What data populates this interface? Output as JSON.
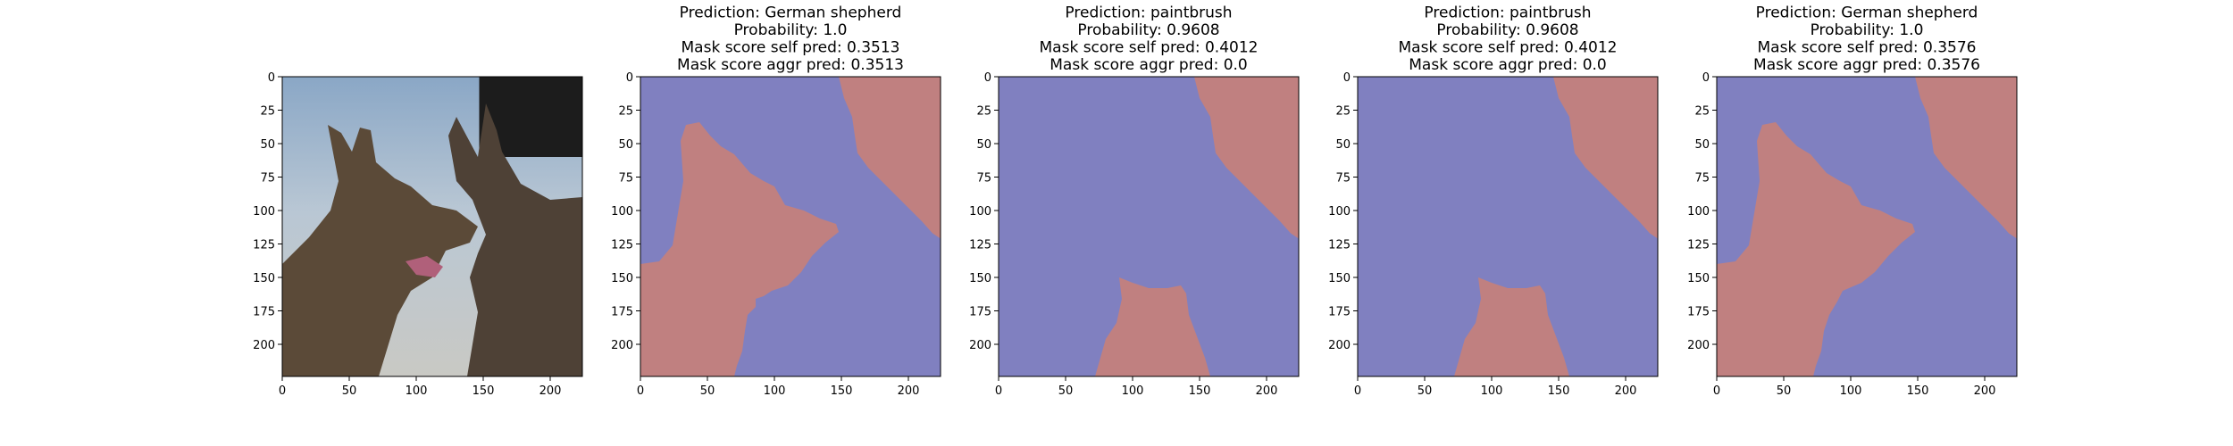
{
  "chart_data": [
    {
      "type": "image",
      "content": "photograph of two German shepherd dogs",
      "title_lines": [],
      "xlim": [
        0,
        224
      ],
      "ylim": [
        224,
        0
      ],
      "xticks": [
        0,
        50,
        100,
        150,
        200
      ],
      "yticks": [
        0,
        25,
        50,
        75,
        100,
        125,
        150,
        175,
        200
      ]
    },
    {
      "type": "mask",
      "title_lines": [
        "Prediction: German shepherd",
        "Probability: 1.0",
        "Mask score self pred: 0.3513",
        "Mask score aggr pred: 0.3513"
      ],
      "xlim": [
        0,
        224
      ],
      "ylim": [
        224,
        0
      ],
      "xticks": [
        0,
        50,
        100,
        150,
        200
      ],
      "yticks": [
        0,
        25,
        50,
        75,
        100,
        125,
        150,
        175,
        200
      ],
      "background_color": "#8080c0",
      "mask_color": "#c08080",
      "regions": [
        [
          [
            148,
            0
          ],
          [
            224,
            0
          ],
          [
            224,
            121
          ],
          [
            218,
            117
          ],
          [
            210,
            108
          ],
          [
            200,
            98
          ],
          [
            190,
            88
          ],
          [
            180,
            78
          ],
          [
            170,
            68
          ],
          [
            162,
            57
          ],
          [
            160,
            44
          ],
          [
            158,
            30
          ],
          [
            152,
            16
          ]
        ],
        [
          [
            0,
            140
          ],
          [
            14,
            138
          ],
          [
            24,
            126
          ],
          [
            28,
            102
          ],
          [
            32,
            78
          ],
          [
            30,
            48
          ],
          [
            34,
            36
          ],
          [
            44,
            34
          ],
          [
            52,
            44
          ],
          [
            60,
            52
          ],
          [
            70,
            58
          ],
          [
            82,
            72
          ],
          [
            92,
            78
          ],
          [
            100,
            82
          ],
          [
            108,
            96
          ],
          [
            122,
            100
          ],
          [
            134,
            106
          ],
          [
            146,
            110
          ],
          [
            148,
            116
          ],
          [
            138,
            124
          ],
          [
            128,
            134
          ],
          [
            120,
            146
          ],
          [
            110,
            156
          ],
          [
            98,
            160
          ],
          [
            92,
            164
          ],
          [
            86,
            166
          ],
          [
            86,
            172
          ],
          [
            80,
            178
          ],
          [
            78,
            190
          ],
          [
            76,
            205
          ],
          [
            72,
            216
          ],
          [
            70,
            224
          ],
          [
            0,
            224
          ]
        ]
      ]
    },
    {
      "type": "mask",
      "title_lines": [
        "Prediction: paintbrush",
        "Probability: 0.9608",
        "Mask score self pred: 0.4012",
        "Mask score aggr pred: 0.0"
      ],
      "xlim": [
        0,
        224
      ],
      "ylim": [
        224,
        0
      ],
      "xticks": [
        0,
        50,
        100,
        150,
        200
      ],
      "yticks": [
        0,
        25,
        50,
        75,
        100,
        125,
        150,
        175,
        200
      ],
      "background_color": "#8080c0",
      "mask_color": "#c08080",
      "regions": [
        [
          [
            146,
            0
          ],
          [
            224,
            0
          ],
          [
            224,
            121
          ],
          [
            218,
            117
          ],
          [
            210,
            108
          ],
          [
            200,
            98
          ],
          [
            190,
            88
          ],
          [
            180,
            78
          ],
          [
            170,
            68
          ],
          [
            162,
            57
          ],
          [
            160,
            44
          ],
          [
            158,
            30
          ],
          [
            150,
            16
          ]
        ],
        [
          [
            72,
            224
          ],
          [
            76,
            210
          ],
          [
            80,
            196
          ],
          [
            88,
            184
          ],
          [
            92,
            166
          ],
          [
            90,
            150
          ],
          [
            100,
            154
          ],
          [
            112,
            158
          ],
          [
            126,
            158
          ],
          [
            136,
            156
          ],
          [
            140,
            162
          ],
          [
            142,
            178
          ],
          [
            148,
            194
          ],
          [
            154,
            210
          ],
          [
            158,
            224
          ]
        ]
      ]
    },
    {
      "type": "mask",
      "title_lines": [
        "Prediction: paintbrush",
        "Probability: 0.9608",
        "Mask score self pred: 0.4012",
        "Mask score aggr pred: 0.0"
      ],
      "xlim": [
        0,
        224
      ],
      "ylim": [
        224,
        0
      ],
      "xticks": [
        0,
        50,
        100,
        150,
        200
      ],
      "yticks": [
        0,
        25,
        50,
        75,
        100,
        125,
        150,
        175,
        200
      ],
      "background_color": "#8080c0",
      "mask_color": "#c08080",
      "regions": [
        [
          [
            146,
            0
          ],
          [
            224,
            0
          ],
          [
            224,
            121
          ],
          [
            218,
            117
          ],
          [
            210,
            108
          ],
          [
            200,
            98
          ],
          [
            190,
            88
          ],
          [
            180,
            78
          ],
          [
            170,
            68
          ],
          [
            162,
            57
          ],
          [
            160,
            44
          ],
          [
            158,
            30
          ],
          [
            150,
            16
          ]
        ],
        [
          [
            72,
            224
          ],
          [
            76,
            210
          ],
          [
            80,
            196
          ],
          [
            88,
            184
          ],
          [
            92,
            166
          ],
          [
            90,
            150
          ],
          [
            100,
            154
          ],
          [
            112,
            158
          ],
          [
            126,
            158
          ],
          [
            136,
            156
          ],
          [
            140,
            162
          ],
          [
            142,
            178
          ],
          [
            148,
            194
          ],
          [
            154,
            210
          ],
          [
            158,
            224
          ]
        ]
      ]
    },
    {
      "type": "mask",
      "title_lines": [
        "Prediction: German shepherd",
        "Probability: 1.0",
        "Mask score self pred: 0.3576",
        "Mask score aggr pred: 0.3576"
      ],
      "xlim": [
        0,
        224
      ],
      "ylim": [
        224,
        0
      ],
      "xticks": [
        0,
        50,
        100,
        150,
        200
      ],
      "yticks": [
        0,
        25,
        50,
        75,
        100,
        125,
        150,
        175,
        200
      ],
      "background_color": "#8080c0",
      "mask_color": "#c08080",
      "regions": [
        [
          [
            148,
            0
          ],
          [
            224,
            0
          ],
          [
            224,
            121
          ],
          [
            218,
            117
          ],
          [
            210,
            108
          ],
          [
            200,
            98
          ],
          [
            190,
            88
          ],
          [
            180,
            78
          ],
          [
            170,
            68
          ],
          [
            162,
            57
          ],
          [
            160,
            44
          ],
          [
            158,
            30
          ],
          [
            152,
            16
          ]
        ],
        [
          [
            0,
            140
          ],
          [
            14,
            138
          ],
          [
            24,
            126
          ],
          [
            28,
            102
          ],
          [
            32,
            78
          ],
          [
            30,
            48
          ],
          [
            34,
            36
          ],
          [
            44,
            34
          ],
          [
            52,
            44
          ],
          [
            60,
            52
          ],
          [
            70,
            58
          ],
          [
            82,
            72
          ],
          [
            92,
            78
          ],
          [
            100,
            82
          ],
          [
            108,
            96
          ],
          [
            122,
            100
          ],
          [
            134,
            106
          ],
          [
            146,
            110
          ],
          [
            148,
            116
          ],
          [
            138,
            124
          ],
          [
            128,
            134
          ],
          [
            118,
            146
          ],
          [
            108,
            154
          ],
          [
            94,
            160
          ],
          [
            90,
            168
          ],
          [
            84,
            178
          ],
          [
            80,
            190
          ],
          [
            78,
            205
          ],
          [
            74,
            216
          ],
          [
            72,
            224
          ],
          [
            0,
            224
          ]
        ]
      ]
    }
  ]
}
